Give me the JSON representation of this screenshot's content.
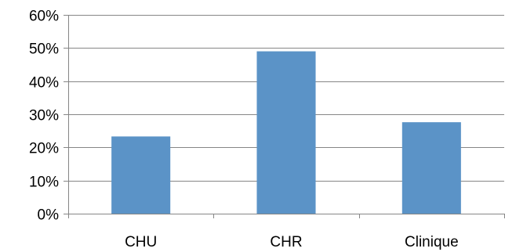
{
  "chart_data": {
    "type": "bar",
    "title": "",
    "xlabel": "",
    "ylabel": "",
    "categories": [
      "CHU",
      "CHR",
      "Clinique"
    ],
    "values": [
      23.3,
      49.0,
      27.6
    ],
    "ylim": [
      0,
      60
    ],
    "yticks": [
      0,
      10,
      20,
      30,
      40,
      50,
      60
    ],
    "ytick_labels": [
      "0%",
      "10%",
      "20%",
      "30%",
      "40%",
      "50%",
      "60%"
    ],
    "grid": true,
    "legend": "none",
    "colors": {
      "bar": "#5B93C7",
      "bar_edge": "#4A7FB3",
      "grid": "#868686",
      "axis": "#868686"
    }
  }
}
